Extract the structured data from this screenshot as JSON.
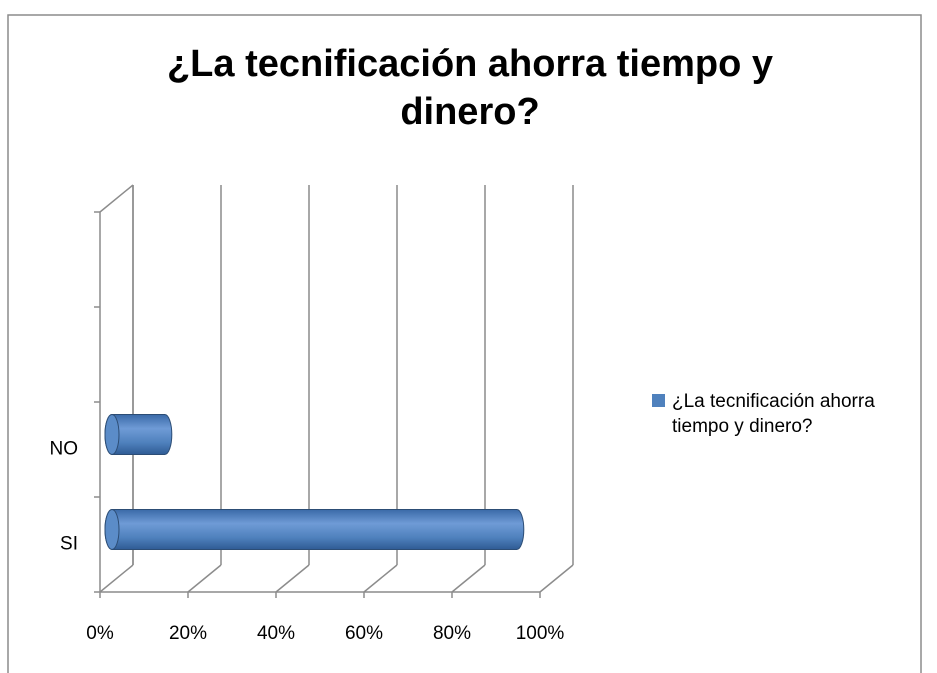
{
  "chart_data": {
    "type": "bar3d_horizontal",
    "title": "¿La tecnificación ahorra tiempo y dinero?",
    "categories": [
      "SI",
      "NO",
      null,
      null
    ],
    "series": [
      {
        "name": "¿La tecnificación ahorra tiempo y dinero?",
        "color": "#4f81bd",
        "values": [
          92,
          12,
          null,
          null
        ]
      }
    ],
    "xlim": [
      0,
      100
    ],
    "xticks": [
      {
        "value": 0,
        "label": "0%"
      },
      {
        "value": 20,
        "label": "20%"
      },
      {
        "value": 40,
        "label": "40%"
      },
      {
        "value": 60,
        "label": "60%"
      },
      {
        "value": 80,
        "label": "80%"
      },
      {
        "value": 100,
        "label": "100%"
      }
    ],
    "grid": true,
    "legend": "right"
  }
}
